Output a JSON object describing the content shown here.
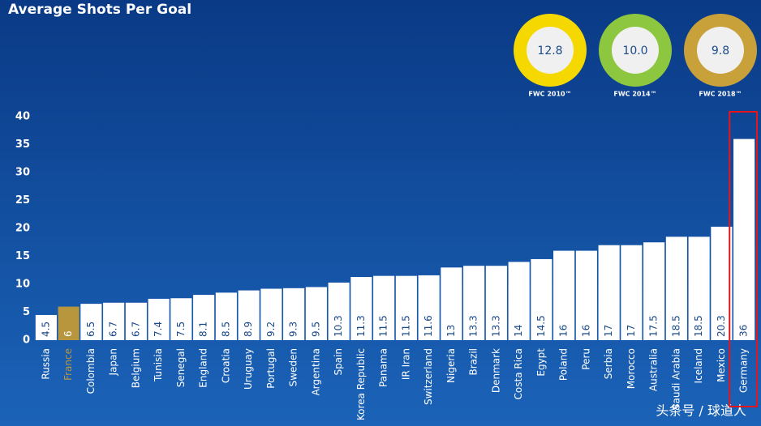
{
  "chart_data": {
    "type": "bar",
    "title": "Average Shots Per Goal",
    "categories": [
      "Russia",
      "France",
      "Colombia",
      "Japan",
      "Belgium",
      "Tunisia",
      "Senegal",
      "England",
      "Croatia",
      "Uruguay",
      "Portugal",
      "Sweden",
      "Argentina",
      "Spain",
      "Korea Republic",
      "Panama",
      "IR Iran",
      "Switzerland",
      "Nigeria",
      "Brazil",
      "Denmark",
      "Costa Rica",
      "Egypt",
      "Poland",
      "Peru",
      "Serbia",
      "Morocco",
      "Australia",
      "Saudi Arabia",
      "Iceland",
      "Mexico",
      "Germany"
    ],
    "values": [
      4.5,
      6,
      6.5,
      6.7,
      6.7,
      7.4,
      7.5,
      8.1,
      8.5,
      8.9,
      9.2,
      9.3,
      9.5,
      10.3,
      11.3,
      11.5,
      11.5,
      11.6,
      13,
      13.3,
      13.3,
      14,
      14.5,
      16,
      16,
      17,
      17,
      17.5,
      18.5,
      18.5,
      20.3,
      36
    ],
    "colors": [
      "#ffffff",
      "#b8963e",
      "#ffffff",
      "#ffffff",
      "#ffffff",
      "#ffffff",
      "#ffffff",
      "#ffffff",
      "#ffffff",
      "#ffffff",
      "#ffffff",
      "#ffffff",
      "#ffffff",
      "#ffffff",
      "#ffffff",
      "#ffffff",
      "#ffffff",
      "#ffffff",
      "#ffffff",
      "#ffffff",
      "#ffffff",
      "#ffffff",
      "#ffffff",
      "#ffffff",
      "#ffffff",
      "#ffffff",
      "#ffffff",
      "#ffffff",
      "#ffffff",
      "#ffffff",
      "#ffffff",
      "#ffffff"
    ],
    "ylim": [
      0,
      40
    ],
    "yticks": [
      0,
      5,
      10,
      15,
      20,
      25,
      30,
      35,
      40
    ],
    "grid": false,
    "badges": [
      {
        "label": "FWC 2010™",
        "value": "12.8",
        "color": "#f5d800"
      },
      {
        "label": "FWC 2014™",
        "value": "10.0",
        "color": "#8dc63f"
      },
      {
        "label": "FWC 2018™",
        "value": "9.8",
        "color": "#c9a13b"
      }
    ],
    "watermark": "头条号 / 球道人"
  }
}
